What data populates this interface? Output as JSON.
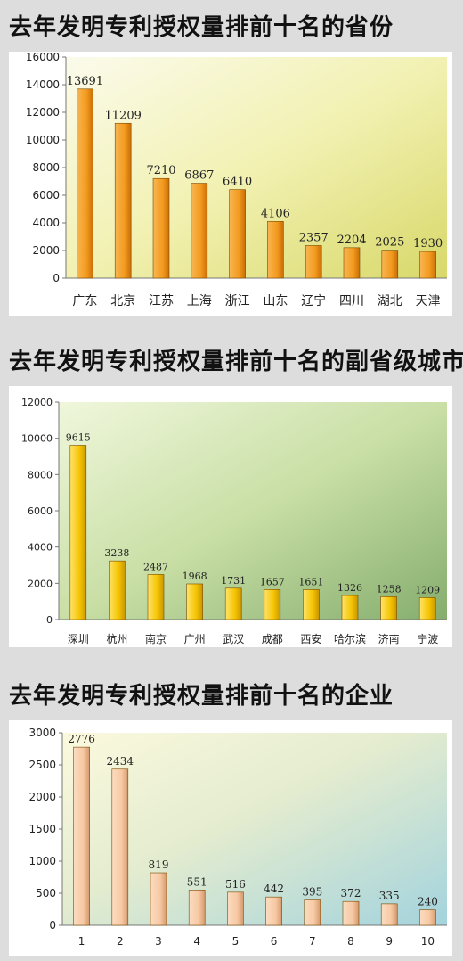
{
  "chart_data": [
    {
      "type": "bar",
      "title": "去年发明专利授权量排前十名的省份",
      "categories": [
        "广东",
        "北京",
        "江苏",
        "上海",
        "浙江",
        "山东",
        "辽宁",
        "四川",
        "湖北",
        "天津"
      ],
      "values": [
        13691,
        11209,
        7210,
        6867,
        6410,
        4106,
        2357,
        2204,
        2025,
        1930
      ],
      "ylim": [
        0,
        16000
      ],
      "yticks": [
        0,
        2000,
        4000,
        6000,
        8000,
        10000,
        12000,
        14000,
        16000
      ],
      "bar_color": "#f39a1e",
      "grid": false
    },
    {
      "type": "bar",
      "title": "去年发明专利授权量排前十名的副省级城市",
      "categories": [
        "深圳",
        "杭州",
        "南京",
        "广州",
        "武汉",
        "成都",
        "西安",
        "哈尔滨",
        "济南",
        "宁波"
      ],
      "values": [
        9615,
        3238,
        2487,
        1968,
        1731,
        1657,
        1651,
        1326,
        1258,
        1209
      ],
      "ylim": [
        0,
        12000
      ],
      "yticks": [
        0,
        2000,
        4000,
        6000,
        8000,
        10000,
        12000
      ],
      "bar_color": "#f5c400",
      "grid": false
    },
    {
      "type": "bar",
      "title": "去年发明专利授权量排前十名的企业",
      "categories": [
        "1",
        "2",
        "3",
        "4",
        "5",
        "6",
        "7",
        "8",
        "9",
        "10"
      ],
      "values": [
        2776,
        2434,
        819,
        551,
        516,
        442,
        395,
        372,
        335,
        240
      ],
      "ylim": [
        0,
        3000
      ],
      "yticks": [
        0,
        500,
        1000,
        1500,
        2000,
        2500,
        3000
      ],
      "bar_color": "#f7c9a4",
      "grid": false
    }
  ]
}
